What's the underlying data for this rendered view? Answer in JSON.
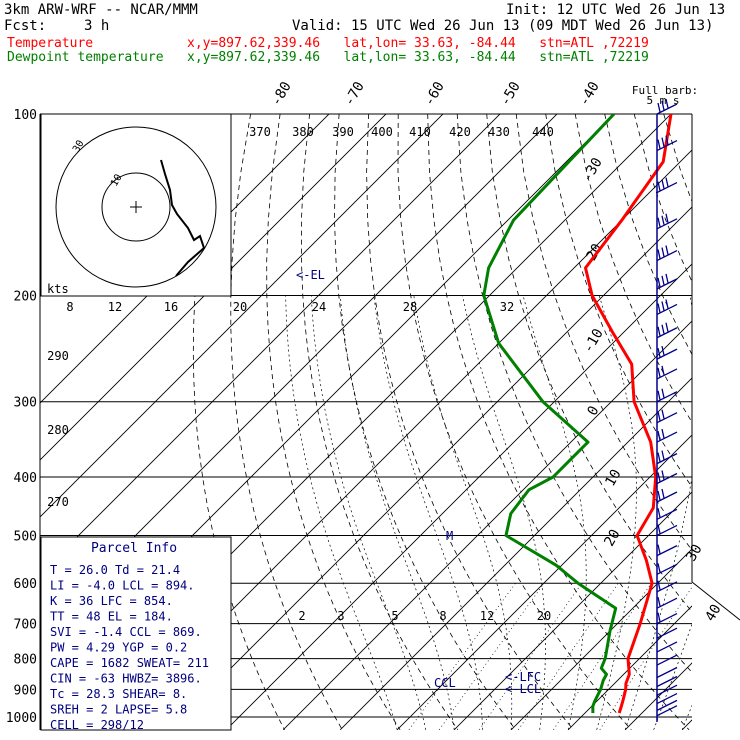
{
  "header": {
    "model": "3km ARW-WRF -- NCAR/MMM",
    "init": "Init: 12 UTC Wed 26 Jun 13",
    "fcst_label": "Fcst:",
    "fcst_value": "3 h",
    "valid": "Valid: 15 UTC Wed 26 Jun 13 (09 MDT Wed 26 Jun 13)",
    "temp_line": "Temperature            x,y=897.62,339.46   lat,lon= 33.63, -84.44   stn=ATL ,72219",
    "dew_line": "Dewpoint temperature   x,y=897.62,339.46   lat,lon= 33.63, -84.44   stn=ATL ,72219"
  },
  "colors": {
    "temperature": "#ff0000",
    "dewpoint": "#008000",
    "header_red": "#ff0000",
    "header_green": "#008000",
    "info_text": "#000080",
    "wind_barbs": "#00008b"
  },
  "barb_key": {
    "line1": "Full barb:",
    "line2": "5 m s"
  },
  "parcel_info": {
    "title": "Parcel Info",
    "rows": [
      "T   =    26.0  Td =  21.4",
      "LI  =    -4.0  LCL =  894.",
      "K   =      36  LFC =  854.",
      "TT  =      48  EL  =  184.",
      "SVI =    -1.4  CCL =  869.",
      "PW  =    4.29  YGP =   0.2",
      "CAPE =   1682  SWEAT=  211",
      "CIN  =    -63  HWBZ= 3896.",
      "Tc  =    28.3  SHEAR=    8.",
      "SREH =      2  LAPSE=  5.8",
      "CELL = 298/12"
    ]
  },
  "hodograph": {
    "units_label": "kts",
    "rings": [
      "10",
      "30"
    ],
    "axis_labels": [
      "8",
      "12",
      "16",
      "20",
      "24",
      "28",
      "32"
    ]
  },
  "markers": {
    "el": "<-EL",
    "lfc": "<-LFC",
    "lcl": "<-LCL",
    "ccl": "CCL",
    "m": "M"
  },
  "chart_data": {
    "type": "line",
    "chart": "Skew-T log-P sounding",
    "pressure_levels": [
      100,
      200,
      300,
      400,
      500,
      600,
      700,
      800,
      900,
      1000
    ],
    "isotherm_labels": [
      "-80",
      "-70",
      "-60",
      "-50",
      "-40",
      "-30",
      "-20",
      "-10",
      "0",
      "10",
      "20",
      "30",
      "40"
    ],
    "theta_labels": [
      "370",
      "380",
      "390",
      "400",
      "410",
      "420",
      "430",
      "440"
    ],
    "left_theta_labels": [
      "290",
      "280",
      "270"
    ],
    "mixing_ratio_labels": [
      "2",
      "3",
      "5",
      "8",
      "12",
      "20"
    ],
    "series": [
      {
        "name": "Temperature",
        "color": "#ff0000",
        "points": [
          [
            100,
            -70
          ],
          [
            120,
            -63
          ],
          [
            150,
            -60
          ],
          [
            180,
            -58
          ],
          [
            200,
            -52
          ],
          [
            230,
            -42
          ],
          [
            260,
            -33
          ],
          [
            300,
            -26
          ],
          [
            350,
            -16
          ],
          [
            400,
            -9
          ],
          [
            450,
            -4
          ],
          [
            500,
            -2
          ],
          [
            550,
            4
          ],
          [
            600,
            9
          ],
          [
            700,
            14
          ],
          [
            800,
            18
          ],
          [
            850,
            21
          ],
          [
            880,
            22
          ],
          [
            900,
            23
          ],
          [
            940,
            24.5
          ],
          [
            960,
            25.2
          ],
          [
            985,
            26
          ]
        ]
      },
      {
        "name": "Dewpoint temperature",
        "color": "#008000",
        "points": [
          [
            100,
            -80
          ],
          [
            150,
            -79
          ],
          [
            180,
            -75
          ],
          [
            200,
            -71
          ],
          [
            240,
            -60
          ],
          [
            300,
            -42
          ],
          [
            350,
            -27
          ],
          [
            380,
            -27
          ],
          [
            400,
            -27
          ],
          [
            420,
            -29
          ],
          [
            460,
            -28
          ],
          [
            500,
            -25
          ],
          [
            560,
            -11
          ],
          [
            600,
            -4
          ],
          [
            660,
            7
          ],
          [
            720,
            10
          ],
          [
            800,
            14
          ],
          [
            830,
            15
          ],
          [
            850,
            17
          ],
          [
            870,
            17.5
          ],
          [
            900,
            18.6
          ],
          [
            940,
            19.6
          ],
          [
            960,
            20.2
          ],
          [
            985,
            21.4
          ]
        ]
      }
    ],
    "hodograph_trace": [
      [
        25,
        160
      ],
      [
        29,
        174
      ],
      [
        34,
        190
      ],
      [
        36,
        205
      ],
      [
        41,
        214
      ],
      [
        52,
        228
      ],
      [
        58,
        240
      ],
      [
        64,
        236
      ],
      [
        68,
        248
      ],
      [
        52,
        262
      ],
      [
        40,
        276
      ]
    ],
    "wind_barbs": [
      {
        "p": 100,
        "ds": 0.55,
        "dir": 290,
        "spd": 18
      },
      {
        "p": 115,
        "ds": 0.55,
        "dir": 290,
        "spd": 18
      },
      {
        "p": 135,
        "ds": 0.55,
        "dir": 290,
        "spd": 17
      },
      {
        "p": 155,
        "ds": 0.55,
        "dir": 295,
        "spd": 17
      },
      {
        "p": 175,
        "ds": 0.55,
        "dir": 295,
        "spd": 16
      },
      {
        "p": 195,
        "ds": 0.55,
        "dir": 295,
        "spd": 16
      },
      {
        "p": 215,
        "ds": 0.55,
        "dir": 290,
        "spd": 15
      },
      {
        "p": 235,
        "ds": 0.55,
        "dir": 290,
        "spd": 15
      },
      {
        "p": 255,
        "ds": 0.55,
        "dir": 285,
        "spd": 14
      },
      {
        "p": 275,
        "ds": 0.55,
        "dir": 285,
        "spd": 14
      },
      {
        "p": 300,
        "ds": 0.55,
        "dir": 285,
        "spd": 13
      },
      {
        "p": 325,
        "ds": 0.55,
        "dir": 285,
        "spd": 12
      },
      {
        "p": 350,
        "ds": 0.55,
        "dir": 280,
        "spd": 12
      },
      {
        "p": 380,
        "ds": 0.55,
        "dir": 280,
        "spd": 11
      },
      {
        "p": 410,
        "ds": 0.55,
        "dir": 280,
        "spd": 10
      },
      {
        "p": 440,
        "ds": 0.55,
        "dir": 280,
        "spd": 10
      },
      {
        "p": 470,
        "ds": 0.55,
        "dir": 275,
        "spd": 9
      },
      {
        "p": 500,
        "ds": 0.55,
        "dir": 275,
        "spd": 9
      },
      {
        "p": 540,
        "ds": 0.55,
        "dir": 270,
        "spd": 8
      },
      {
        "p": 580,
        "ds": 0.55,
        "dir": 265,
        "spd": 7
      },
      {
        "p": 620,
        "ds": 0.55,
        "dir": 260,
        "spd": 6
      },
      {
        "p": 660,
        "ds": 0.55,
        "dir": 255,
        "spd": 5
      },
      {
        "p": 700,
        "ds": 0.55,
        "dir": 250,
        "spd": 5
      },
      {
        "p": 740,
        "ds": 0.55,
        "dir": 240,
        "spd": 4
      },
      {
        "p": 780,
        "ds": 0.55,
        "dir": 235,
        "spd": 4
      },
      {
        "p": 820,
        "ds": 0.55,
        "dir": 225,
        "spd": 3
      },
      {
        "p": 860,
        "ds": 0.55,
        "dir": 215,
        "spd": 3
      },
      {
        "p": 890,
        "ds": 0.55,
        "dir": 210,
        "spd": 3
      },
      {
        "p": 920,
        "ds": 0.55,
        "dir": 200,
        "spd": 2
      },
      {
        "p": 950,
        "ds": 0.55,
        "dir": 190,
        "spd": 2
      },
      {
        "p": 975,
        "ds": 0.55,
        "dir": 180,
        "spd": 2
      },
      {
        "p": 995,
        "ds": 0.55,
        "dir": 180,
        "spd": 2
      }
    ]
  }
}
